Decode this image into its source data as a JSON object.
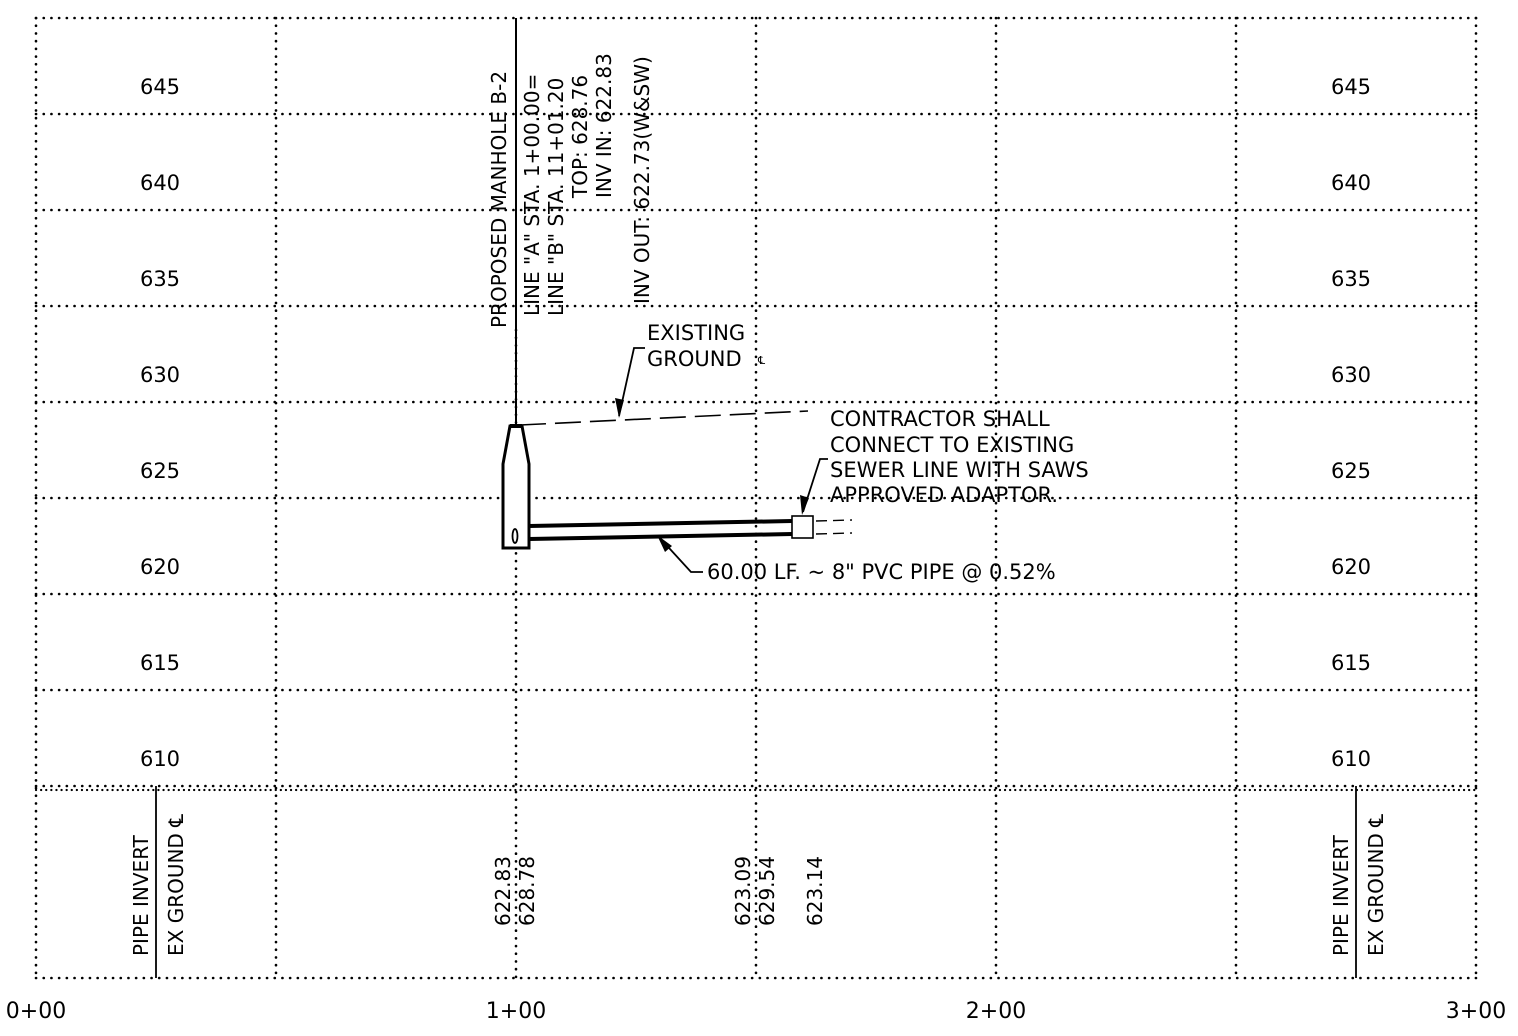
{
  "profile": {
    "elevations_left": [
      "645",
      "640",
      "635",
      "630",
      "625",
      "620",
      "615",
      "610"
    ],
    "elevations_right": [
      "645",
      "640",
      "635",
      "630",
      "625",
      "620",
      "615",
      "610"
    ],
    "stations": [
      "0+00",
      "1+00",
      "2+00",
      "3+00"
    ]
  },
  "manhole": {
    "label_lines": [
      "PROPOSED MANHOLE B-2",
      "LINE \"A\" STA. 1+00.00=",
      "LINE \"B\" STA. 11+01.20",
      "TOP: 628.76",
      "INV IN: 622.83",
      "INV OUT: 622.73(W&SW)"
    ]
  },
  "annotations": {
    "existing_ground": [
      "EXISTING",
      "GROUND"
    ],
    "centerline_symbol": "℄",
    "contractor_note": [
      "CONTRACTOR SHALL",
      "CONNECT TO EXISTING",
      "SEWER LINE WITH SAWS",
      "APPROVED ADAPTOR."
    ],
    "pipe_label": "60.00 LF. ~ 8\" PVC PIPE @ 0.52%"
  },
  "data_band": {
    "row_labels": [
      "PIPE INVERT",
      "EX GROUND ℄"
    ],
    "values": [
      {
        "station": "1+00",
        "pipe_invert": "622.83",
        "ex_ground": "628.78"
      },
      {
        "station": "1+50",
        "pipe_invert": "623.09",
        "ex_ground": "629.54"
      },
      {
        "station": "1+60",
        "pipe_invert": "623.14",
        "ex_ground": ""
      }
    ]
  }
}
